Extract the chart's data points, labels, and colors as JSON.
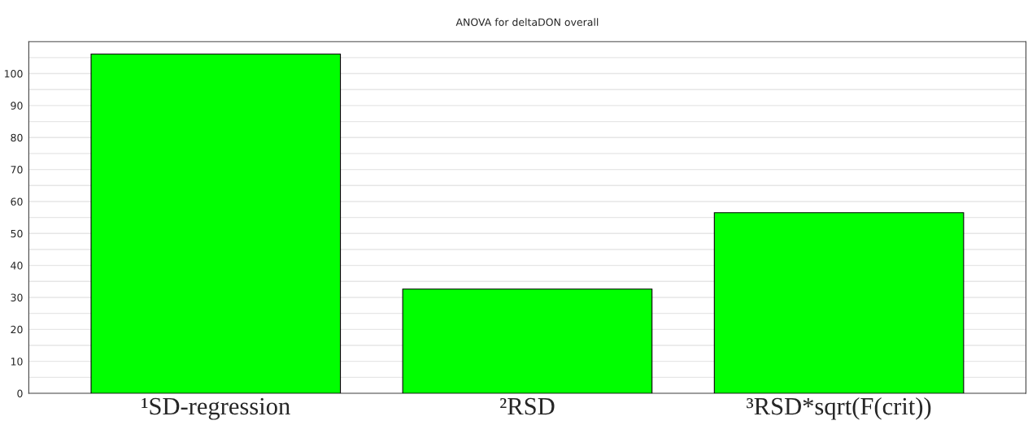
{
  "chart_data": {
    "type": "bar",
    "title": "ANOVA for deltaDON overall",
    "categories": [
      "¹SD-regression",
      "²RSD",
      "³RSD*sqrt(F(crit))"
    ],
    "values": [
      106.1,
      32.6,
      56.5
    ],
    "color": "#00ff00",
    "ylim": [
      0,
      110
    ],
    "yticks": [
      0,
      {
        "value": 5,
        "label": null
      },
      10,
      {
        "value": 15,
        "label": null
      },
      20,
      {
        "value": 25,
        "label": null
      },
      30,
      {
        "value": 35,
        "label": null
      },
      40,
      {
        "value": 45,
        "label": null
      },
      50,
      {
        "value": 55,
        "label": null
      },
      60,
      {
        "value": 65,
        "label": null
      },
      70,
      {
        "value": 75,
        "label": null
      },
      80,
      {
        "value": 85,
        "label": null
      },
      90,
      {
        "value": 95,
        "label": null
      },
      100,
      {
        "value": 105,
        "label": null
      }
    ],
    "grid": "y"
  }
}
